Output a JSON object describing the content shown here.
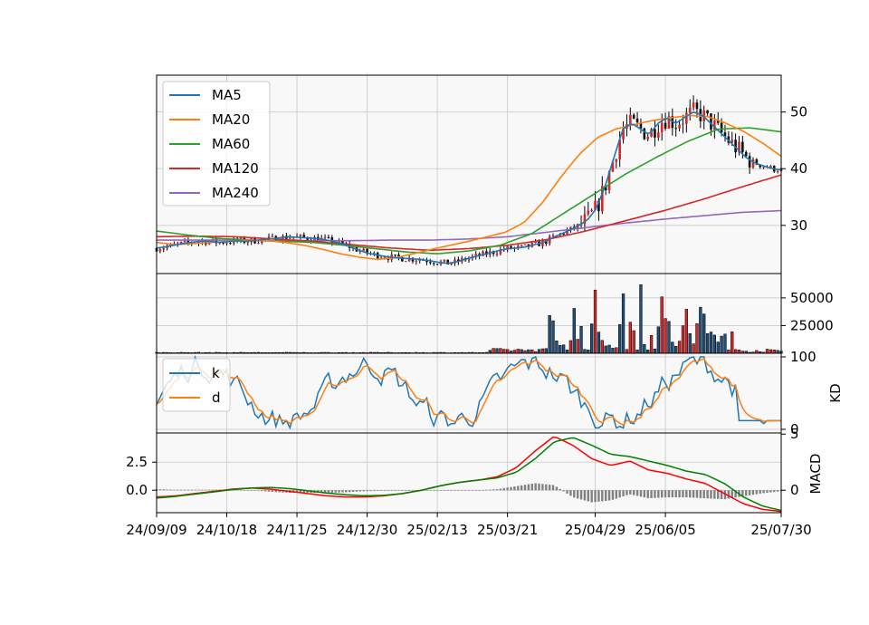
{
  "chart_data": {
    "type": "line",
    "title": "",
    "x_tick_labels": [
      "24/09/09",
      "24/10/18",
      "24/11/25",
      "24/12/30",
      "25/02/13",
      "25/03/21",
      "25/04/29",
      "25/06/05",
      "25/07/30"
    ],
    "x_tick_index": [
      0,
      20,
      40,
      60,
      80,
      100,
      125,
      145,
      178
    ],
    "price_panel": {
      "type": "candlestick",
      "ylim": [
        21.5,
        56.5
      ],
      "yticks": [
        30,
        40,
        50
      ],
      "grid": true,
      "legend_position": "upper-left",
      "series": [
        {
          "name": "MA5",
          "color": "#1f77b4",
          "values": [
            26.0,
            26.2,
            26.5,
            26.8,
            27.0,
            27.2,
            27.2,
            27.0,
            27.1,
            27.3,
            27.2,
            27.3,
            27.5,
            27.6,
            27.8,
            28.0,
            27.9,
            27.8,
            27.7,
            27.5,
            27.2,
            26.8,
            26.2,
            25.6,
            25.1,
            24.8,
            24.5,
            24.3,
            24.2,
            24.1,
            24.0,
            23.8,
            23.5,
            23.3,
            23.5,
            24.0,
            24.4,
            24.8,
            25.2,
            25.6,
            25.9,
            26.0,
            26.2,
            26.6,
            27.0,
            27.8,
            28.5,
            29.2,
            30.0,
            31.0,
            33.0,
            37.0,
            42.0,
            47.0,
            48.0,
            47.0,
            46.0,
            48.0,
            49.0,
            48.0,
            49.0,
            50.0,
            49.5,
            48.0,
            46.5,
            45.0,
            43.5,
            42.0,
            41.0,
            40.5,
            40.0,
            39.8
          ]
        },
        {
          "name": "MA20",
          "color": "#ff7f0e",
          "values": [
            27.0,
            26.6,
            26.8,
            27.0,
            27.2,
            27.4,
            27.3,
            27.0,
            26.5,
            25.8,
            25.0,
            24.4,
            24.0,
            24.3,
            25.0,
            25.8,
            26.5,
            27.2,
            28.0,
            28.8,
            30.5,
            34.0,
            38.5,
            42.5,
            45.5,
            47.0,
            47.8,
            48.5,
            49.0,
            49.4,
            49.2,
            48.0,
            46.5,
            44.5,
            42.2
          ]
        },
        {
          "name": "MA60",
          "color": "#2ca02c",
          "values": [
            29.0,
            28.3,
            27.7,
            27.4,
            27.2,
            27.0,
            26.5,
            25.9,
            25.3,
            25.0,
            25.5,
            26.5,
            28.5,
            32.0,
            35.5,
            39.0,
            42.0,
            44.8,
            47.0,
            47.2,
            46.5
          ]
        },
        {
          "name": "MA120",
          "color": "#d62728",
          "values": [
            28.0,
            28.1,
            28.0,
            27.6,
            27.2,
            26.6,
            26.0,
            25.6,
            25.9,
            26.5,
            27.5,
            29.0,
            30.8,
            32.6,
            34.6,
            36.8,
            38.9
          ]
        },
        {
          "name": "MA240",
          "color": "#9467bd",
          "values": [
            27.4,
            27.4,
            27.4,
            27.3,
            27.3,
            27.3,
            27.4,
            27.4,
            27.6,
            28.0,
            28.8,
            29.6,
            30.4,
            31.1,
            31.7,
            32.3,
            32.6
          ]
        }
      ]
    },
    "volume_panel": {
      "type": "bar",
      "ylim": [
        0,
        72000
      ],
      "yticks": [
        25000,
        50000
      ],
      "grid": true,
      "approx_peak": 62000
    },
    "kd_panel": {
      "type": "line",
      "ylabel": "KD",
      "ylim": [
        -5,
        105
      ],
      "yticks": [
        0,
        100
      ],
      "grid": true,
      "legend_position": "upper-left",
      "series": [
        {
          "name": "k",
          "color": "#1f77b4"
        },
        {
          "name": "d",
          "color": "#ff7f0e"
        }
      ]
    },
    "macd_panel": {
      "type": "line",
      "ylabel": "MACD",
      "ylim": [
        -2.0,
        5.1
      ],
      "yticks_left": [
        0.0,
        2.5
      ],
      "yticks_right": [
        0,
        5
      ],
      "grid": true,
      "series": [
        {
          "name": "",
          "color": "#ff0000",
          "values": [
            -0.6,
            -0.5,
            -0.3,
            -0.1,
            0.1,
            0.2,
            0.1,
            -0.1,
            -0.3,
            -0.5,
            -0.6,
            -0.6,
            -0.5,
            -0.3,
            0.0,
            0.4,
            0.7,
            0.9,
            1.2,
            2.0,
            3.5,
            4.8,
            4.0,
            2.8,
            2.2,
            2.6,
            1.8,
            1.5,
            1.0,
            0.6,
            -0.3,
            -1.2,
            -1.7,
            -1.9
          ]
        },
        {
          "name": "",
          "color": "#008000",
          "values": [
            -0.7,
            -0.55,
            -0.35,
            -0.15,
            0.05,
            0.2,
            0.25,
            0.15,
            -0.05,
            -0.25,
            -0.4,
            -0.5,
            -0.45,
            -0.3,
            0.0,
            0.4,
            0.7,
            0.9,
            1.1,
            1.6,
            2.8,
            4.3,
            4.7,
            4.0,
            3.2,
            3.0,
            2.6,
            2.2,
            1.7,
            1.4,
            0.6,
            -0.6,
            -1.4,
            -1.8
          ]
        }
      ]
    }
  }
}
